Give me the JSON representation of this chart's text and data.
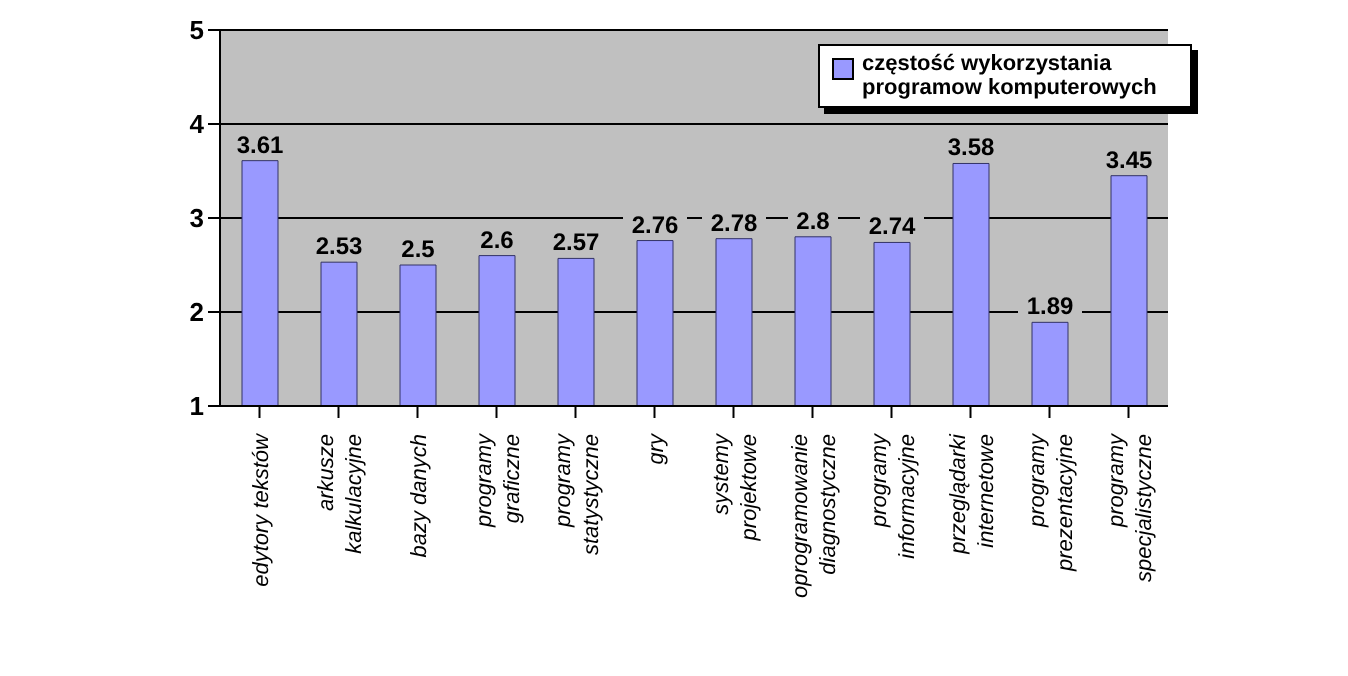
{
  "chart_data": {
    "type": "bar",
    "categories": [
      "edytory tekstów",
      "arkusze kalkulacyjne",
      "bazy danych",
      "programy graficzne",
      "programy statystyczne",
      "gry",
      "systemy projektowe",
      "oprogramowanie diagnostyczne",
      "programy informacyjne",
      "przeglądarki internetowe",
      "programy prezentacyjne",
      "programy specjalistyczne"
    ],
    "series": [
      {
        "name": "częstość wykorzystania programow komputerowych",
        "color": "#9999ff",
        "values": [
          3.61,
          2.53,
          2.5,
          2.6,
          2.57,
          2.76,
          2.78,
          2.8,
          2.74,
          3.58,
          1.89,
          3.45
        ]
      }
    ],
    "ylim": [
      1,
      5
    ],
    "yticks": [
      1,
      2,
      3,
      4,
      5
    ],
    "grid": "y",
    "legend": "top right",
    "data_labels": true
  }
}
